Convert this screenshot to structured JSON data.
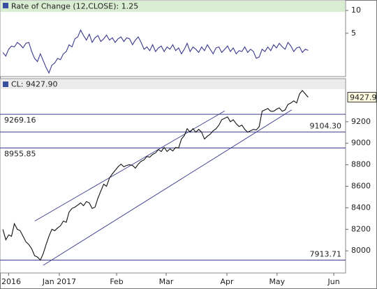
{
  "chart_data": [
    {
      "type": "line",
      "title": "Rate of Change (12,CLOSE): 1.25",
      "x": [
        1,
        2,
        3,
        4,
        5,
        6,
        7,
        8,
        9,
        10,
        11,
        12,
        13,
        14,
        15,
        16,
        17,
        18,
        19,
        20,
        21,
        22,
        23,
        24,
        25,
        26,
        27,
        28,
        29,
        30,
        31,
        32,
        33,
        34,
        35,
        36,
        37,
        38,
        39,
        40,
        41,
        42,
        43,
        44,
        45,
        46,
        47,
        48,
        49,
        50,
        51,
        52,
        53,
        54,
        55,
        56,
        57,
        58,
        59,
        60,
        61,
        62,
        63,
        64,
        65,
        66,
        67,
        68,
        69,
        70,
        71,
        72,
        73,
        74,
        75,
        76,
        77,
        78,
        79,
        80,
        81,
        82,
        83,
        84,
        85,
        86,
        87,
        88,
        89,
        90,
        91,
        92,
        93,
        94,
        95,
        96,
        97,
        98,
        99,
        100,
        101,
        102,
        103,
        104,
        105,
        106,
        107
      ],
      "series": [
        {
          "color": "#3a3a8c",
          "values": [
            0.8,
            0.0,
            1.5,
            2.2,
            2.0,
            3.0,
            2.5,
            1.8,
            2.8,
            3.0,
            1.0,
            -0.5,
            -1.2,
            0.5,
            -1.0,
            -2.5,
            -3.7,
            -2.0,
            -1.5,
            -0.5,
            -0.8,
            0.5,
            1.0,
            2.5,
            2.0,
            3.8,
            4.2,
            5.7,
            4.5,
            3.5,
            4.8,
            3.0,
            4.0,
            4.5,
            3.2,
            3.8,
            4.6,
            3.5,
            4.0,
            3.0,
            3.8,
            4.2,
            3.2,
            4.0,
            3.8,
            2.5,
            3.5,
            4.2,
            3.0,
            1.5,
            2.0,
            1.2,
            2.5,
            1.0,
            1.8,
            2.2,
            1.0,
            2.0,
            1.5,
            2.5,
            1.2,
            1.8,
            0.5,
            1.5,
            2.8,
            1.0,
            2.0,
            1.5,
            0.8,
            2.0,
            1.2,
            2.5,
            1.5,
            0.5,
            1.8,
            2.0,
            0.8,
            1.5,
            2.2,
            1.0,
            1.8,
            0.5,
            1.2,
            1.0,
            2.0,
            0.8,
            1.5,
            1.0,
            -0.5,
            -0.2,
            1.5,
            1.0,
            2.0,
            1.2,
            2.5,
            1.8,
            2.8,
            2.0,
            1.5,
            3.0,
            2.2,
            1.0,
            1.8,
            2.0,
            0.8,
            1.5,
            1.25
          ]
        }
      ],
      "xlim": [
        0,
        120
      ],
      "ylim": [
        -4.5,
        12.3
      ],
      "yticks": [
        5,
        10
      ],
      "header_color": "#d9edd2"
    },
    {
      "type": "line",
      "title": "CL: 9427.90",
      "x": [
        1,
        2,
        3,
        4,
        5,
        6,
        7,
        8,
        9,
        10,
        11,
        12,
        13,
        14,
        15,
        16,
        17,
        18,
        19,
        20,
        21,
        22,
        23,
        24,
        25,
        26,
        27,
        28,
        29,
        30,
        31,
        32,
        33,
        34,
        35,
        36,
        37,
        38,
        39,
        40,
        41,
        42,
        43,
        44,
        45,
        46,
        47,
        48,
        49,
        50,
        51,
        52,
        53,
        54,
        55,
        56,
        57,
        58,
        59,
        60,
        61,
        62,
        63,
        64,
        65,
        66,
        67,
        68,
        69,
        70,
        71,
        72,
        73,
        74,
        75,
        76,
        77,
        78,
        79,
        80,
        81,
        82,
        83,
        84,
        85,
        86,
        87,
        88,
        89,
        90,
        91,
        92,
        93,
        94,
        95,
        96,
        97,
        98,
        99,
        100,
        101,
        102,
        103,
        104,
        105,
        106,
        107
      ],
      "series": [
        {
          "color": "#111111",
          "values": [
            8200,
            8103,
            8148,
            8135,
            8252,
            8200,
            8187,
            8135,
            8084,
            8058,
            8019,
            7955,
            7942,
            7914,
            7974,
            8058,
            8135,
            8200,
            8187,
            8213,
            8232,
            8277,
            8265,
            8361,
            8394,
            8406,
            8426,
            8445,
            8419,
            8458,
            8445,
            8394,
            8406,
            8490,
            8555,
            8619,
            8600,
            8677,
            8716,
            8748,
            8781,
            8806,
            8781,
            8794,
            8800,
            8794,
            8768,
            8806,
            8832,
            8845,
            8877,
            8871,
            8897,
            8910,
            8942,
            8923,
            8961,
            8923,
            8948,
            8929,
            8961,
            8955,
            9039,
            9071,
            9135,
            9103,
            9135,
            9103,
            9129,
            9103,
            9039,
            9065,
            9084,
            9116,
            9135,
            9168,
            9219,
            9232,
            9245,
            9200,
            9219,
            9181,
            9155,
            9168,
            9129,
            9103,
            9116,
            9129,
            9123,
            9155,
            9297,
            9310,
            9323,
            9297,
            9297,
            9316,
            9329,
            9297,
            9310,
            9361,
            9374,
            9394,
            9374,
            9458,
            9490,
            9458,
            9427.9
          ]
        }
      ],
      "xlim": [
        0,
        120
      ],
      "ylim": [
        7794,
        9600
      ],
      "yticks": [
        8000,
        8200,
        8400,
        8600,
        8800,
        9000,
        9200
      ],
      "xticks": [
        {
          "value": 3,
          "label": "2016"
        },
        {
          "value": 20.6,
          "label": "Jan 2017"
        },
        {
          "value": 40.5,
          "label": "Feb"
        },
        {
          "value": 57.7,
          "label": "Mar"
        },
        {
          "value": 78.8,
          "label": "Apr"
        },
        {
          "value": 96.2,
          "label": "May"
        },
        {
          "value": 115.9,
          "label": "Jun"
        }
      ],
      "levels": [
        {
          "value": 9269.16,
          "label": "9269.16",
          "side": "left"
        },
        {
          "value": 9104.3,
          "label": "9104.30",
          "side": "right"
        },
        {
          "value": 8955.85,
          "label": "8955.85",
          "side": "left"
        },
        {
          "value": 7913.71,
          "label": "7913.71",
          "side": "right"
        }
      ],
      "level_color": "#3b3b8f",
      "trendlines": [
        {
          "x": [
            12.1,
            78
          ],
          "values": [
            8277,
            9300
          ]
        },
        {
          "x": [
            15,
            101.3
          ],
          "values": [
            7865,
            9310
          ]
        }
      ],
      "header_color": "#ececec"
    }
  ]
}
